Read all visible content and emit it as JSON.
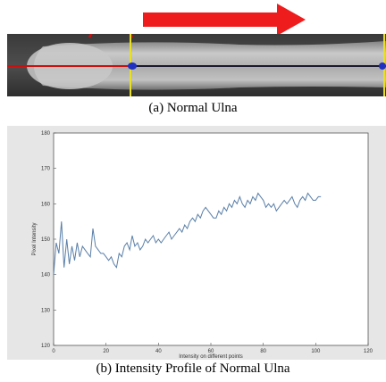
{
  "figure": {
    "caption_a": "(a) Normal Ulna",
    "caption_b": "(b) Intensity Profile of Normal Ulna",
    "colors": {
      "arrow": "#ee1c1c",
      "marker_line": "#cc1010",
      "yellow_line": "#e8e020",
      "dark_line": "#1a1a30",
      "point": "#2030c0",
      "plot_bg": "#e6e6e6",
      "series": "#5a7fa8"
    }
  },
  "chart_data": {
    "type": "line",
    "title": "",
    "xlabel": "Intensity on different points",
    "ylabel": "Pixel Intensity",
    "xlim": [
      0,
      120
    ],
    "ylim": [
      120,
      180
    ],
    "xticks": [
      "0",
      "20",
      "40",
      "60",
      "80",
      "100",
      "120"
    ],
    "yticks": [
      "120",
      "130",
      "140",
      "150",
      "160",
      "170",
      "180"
    ],
    "grid": false,
    "series": [
      {
        "name": "",
        "x": [
          0,
          1,
          2,
          3,
          4,
          5,
          6,
          7,
          8,
          9,
          10,
          11,
          12,
          13,
          14,
          15,
          16,
          17,
          18,
          19,
          20,
          21,
          22,
          23,
          24,
          25,
          26,
          27,
          28,
          29,
          30,
          31,
          32,
          33,
          34,
          35,
          36,
          37,
          38,
          39,
          40,
          41,
          42,
          43,
          44,
          45,
          46,
          47,
          48,
          49,
          50,
          51,
          52,
          53,
          54,
          55,
          56,
          57,
          58,
          59,
          60,
          61,
          62,
          63,
          64,
          65,
          66,
          67,
          68,
          69,
          70,
          71,
          72,
          73,
          74,
          75,
          76,
          77,
          78,
          79,
          80,
          81,
          82,
          83,
          84,
          85,
          86,
          87,
          88,
          89,
          90,
          91,
          92,
          93,
          94,
          95,
          96,
          97,
          98,
          99,
          100,
          101,
          102
        ],
        "y": [
          140,
          149,
          146,
          155,
          142,
          150,
          143,
          148,
          144,
          149,
          145,
          148,
          147,
          146,
          145,
          153,
          148,
          147,
          146,
          146,
          145,
          144,
          145,
          143,
          142,
          146,
          145,
          148,
          149,
          147,
          151,
          148,
          149,
          147,
          148,
          150,
          149,
          150,
          151,
          149,
          150,
          149,
          150,
          151,
          152,
          150,
          151,
          152,
          153,
          152,
          154,
          153,
          155,
          156,
          155,
          157,
          156,
          158,
          159,
          158,
          157,
          156,
          156,
          158,
          157,
          159,
          158,
          160,
          159,
          161,
          160,
          162,
          160,
          159,
          161,
          160,
          162,
          161,
          163,
          162,
          161,
          159,
          160,
          159,
          160,
          158,
          159,
          160,
          161,
          160,
          161,
          162,
          160,
          159,
          161,
          162,
          161,
          163,
          162,
          161,
          161,
          162,
          162
        ]
      }
    ]
  }
}
